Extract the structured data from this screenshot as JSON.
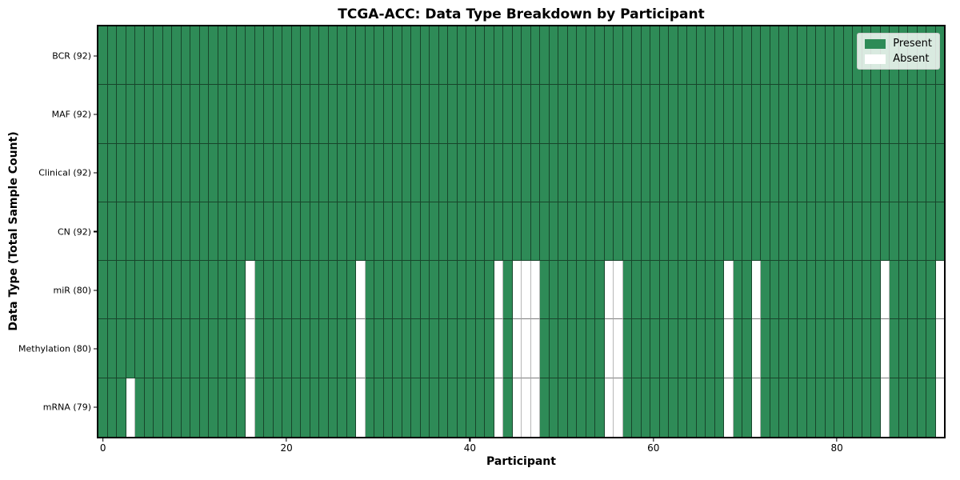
{
  "chart_data": {
    "type": "heatmap",
    "title": "TCGA-ACC: Data Type Breakdown by Participant",
    "xlabel": "Participant",
    "ylabel": "Data Type (Total Sample Count)",
    "x_axis": {
      "n_participants": 92,
      "range": [
        -0.5,
        91.5
      ],
      "ticks": [
        0,
        20,
        40,
        60,
        80
      ]
    },
    "colors": {
      "present": "#2e8b57",
      "absent": "#ffffff"
    },
    "legend": {
      "position": "upper right",
      "entries": [
        {
          "label": "Present",
          "color": "#2e8b57"
        },
        {
          "label": "Absent",
          "color": "#ffffff"
        }
      ]
    },
    "rows": [
      {
        "label": "BCR (92)",
        "data_type": "BCR",
        "total_samples": 92,
        "absent_participants": []
      },
      {
        "label": "MAF (92)",
        "data_type": "MAF",
        "total_samples": 92,
        "absent_participants": []
      },
      {
        "label": "Clinical (92)",
        "data_type": "Clinical",
        "total_samples": 92,
        "absent_participants": []
      },
      {
        "label": "CN (92)",
        "data_type": "CN",
        "total_samples": 92,
        "absent_participants": []
      },
      {
        "label": "miR (80)",
        "data_type": "miR",
        "total_samples": 80,
        "absent_participants": [
          16,
          28,
          43,
          45,
          46,
          47,
          55,
          56,
          68,
          71,
          85,
          91
        ]
      },
      {
        "label": "Methylation (80)",
        "data_type": "Methylation",
        "total_samples": 80,
        "absent_participants": [
          16,
          28,
          43,
          45,
          46,
          47,
          55,
          56,
          68,
          71,
          85,
          91
        ]
      },
      {
        "label": "mRNA (79)",
        "data_type": "mRNA",
        "total_samples": 79,
        "absent_participants": [
          3,
          16,
          28,
          43,
          45,
          46,
          47,
          55,
          56,
          68,
          71,
          85,
          91
        ]
      }
    ]
  }
}
